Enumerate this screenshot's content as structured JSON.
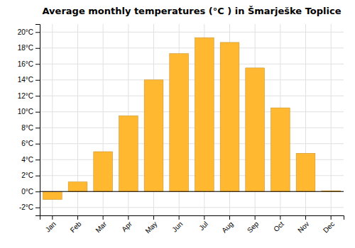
{
  "chart_data": {
    "type": "bar",
    "title": "Average monthly temperatures (°C ) in Šmarješke Toplice",
    "categories": [
      "Jan",
      "Feb",
      "Mar",
      "Apr",
      "May",
      "Jun",
      "Jul",
      "Aug",
      "Sep",
      "Oct",
      "Nov",
      "Dec"
    ],
    "values": [
      -1.0,
      1.2,
      5.0,
      9.5,
      14.0,
      17.3,
      19.3,
      18.7,
      15.5,
      10.5,
      4.8,
      0.1
    ],
    "color": "#FFB830",
    "ylim": [
      -3,
      21
    ],
    "yticks": [
      {
        "value": -2,
        "label": "-2°C"
      },
      {
        "value": 0,
        "label": "0°C"
      },
      {
        "value": 2,
        "label": "2°C"
      },
      {
        "value": 4,
        "label": "4°C"
      },
      {
        "value": 6,
        "label": "6°C"
      },
      {
        "value": 8,
        "label": "8°C"
      },
      {
        "value": 10,
        "label": "10°C"
      },
      {
        "value": 12,
        "label": "12°C"
      },
      {
        "value": 14,
        "label": "14°C"
      },
      {
        "value": 16,
        "label": "16°C"
      },
      {
        "value": 18,
        "label": "18°C"
      },
      {
        "value": 20,
        "label": "20°C"
      }
    ],
    "grid": true
  }
}
